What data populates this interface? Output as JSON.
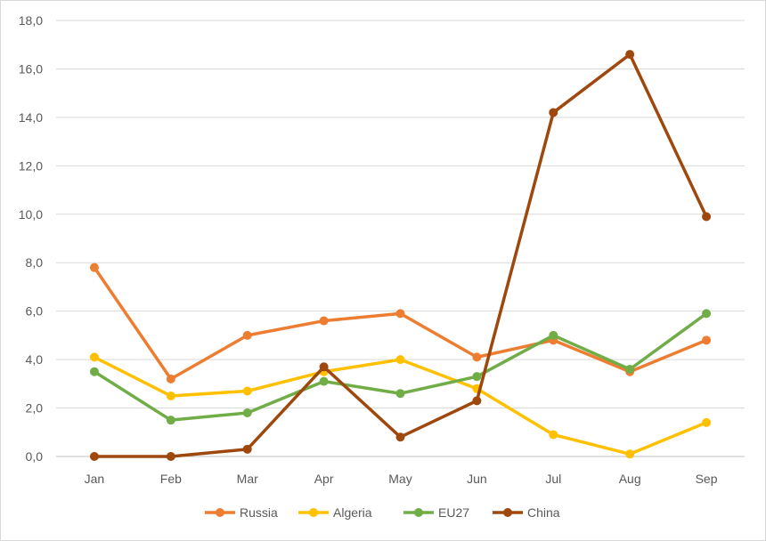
{
  "chart_data": {
    "type": "line",
    "title": "",
    "xlabel": "",
    "ylabel": "",
    "categories": [
      "Jan",
      "Feb",
      "Mar",
      "Apr",
      "May",
      "Jun",
      "Jul",
      "Aug",
      "Sep"
    ],
    "ylim": [
      0,
      18
    ],
    "yticks": [
      "0,0",
      "2,0",
      "4,0",
      "6,0",
      "8,0",
      "10,0",
      "12,0",
      "14,0",
      "16,0",
      "18,0"
    ],
    "grid": true,
    "legend_position": "bottom",
    "series": [
      {
        "name": "Russia",
        "color": "#ED7D31",
        "values": [
          7.8,
          3.2,
          5.0,
          5.6,
          5.9,
          4.1,
          4.8,
          3.5,
          4.8
        ]
      },
      {
        "name": "Algeria",
        "color": "#FFC000",
        "values": [
          4.1,
          2.5,
          2.7,
          3.5,
          4.0,
          2.8,
          0.9,
          0.1,
          1.4
        ]
      },
      {
        "name": "EU27",
        "color": "#70AD47",
        "values": [
          3.5,
          1.5,
          1.8,
          3.1,
          2.6,
          3.3,
          5.0,
          3.6,
          5.9
        ]
      },
      {
        "name": "China",
        "color": "#9E480E",
        "values": [
          0.0,
          0.0,
          0.3,
          3.7,
          0.8,
          2.3,
          14.2,
          16.6,
          9.9
        ]
      }
    ]
  }
}
